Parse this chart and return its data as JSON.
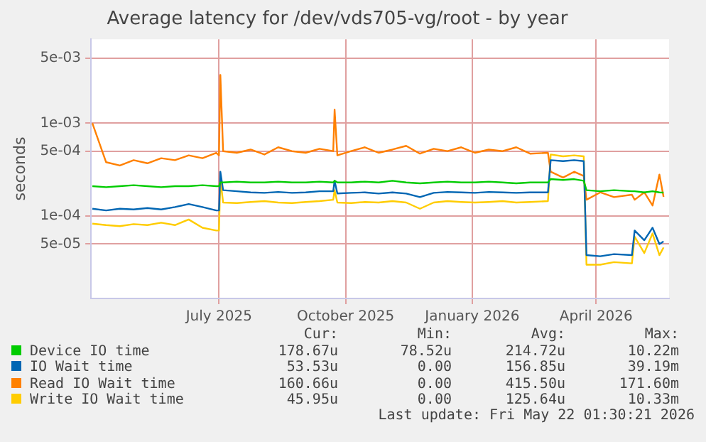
{
  "chart_data": {
    "type": "line",
    "title": "Average latency for /dev/vds705-vg/root - by year",
    "ylabel": "seconds",
    "log": true,
    "grid": true,
    "legend": "bottom",
    "marker": "none",
    "line_style": "solid",
    "xlim": [
      "2025-03-30",
      "2026-05-24"
    ],
    "xticks": [
      {
        "value": "2025-07-01",
        "label": "July 2025"
      },
      {
        "value": "2025-10-01",
        "label": "October 2025"
      },
      {
        "value": "2026-01-01",
        "label": "January 2026"
      },
      {
        "value": "2026-04-01",
        "label": "April 2026"
      }
    ],
    "ylim": [
      1.3e-05,
      0.008
    ],
    "yticks": [
      {
        "value": 5e-05,
        "label": "5e-05"
      },
      {
        "value": 0.0001,
        "label": "1e-04"
      },
      {
        "value": 0.0005,
        "label": "5e-04"
      },
      {
        "value": 0.001,
        "label": "1e-03"
      },
      {
        "value": 0.005,
        "label": "5e-03"
      }
    ],
    "x": [
      "2025-03-31",
      "2025-04-10",
      "2025-04-20",
      "2025-04-30",
      "2025-05-10",
      "2025-05-20",
      "2025-05-30",
      "2025-06-09",
      "2025-06-19",
      "2025-06-29",
      "2025-07-01",
      "2025-07-02",
      "2025-07-04",
      "2025-07-14",
      "2025-07-24",
      "2025-08-03",
      "2025-08-13",
      "2025-08-23",
      "2025-09-02",
      "2025-09-12",
      "2025-09-22",
      "2025-09-23",
      "2025-09-25",
      "2025-10-05",
      "2025-10-15",
      "2025-10-25",
      "2025-11-04",
      "2025-11-14",
      "2025-11-24",
      "2025-12-04",
      "2025-12-14",
      "2025-12-24",
      "2026-01-03",
      "2026-01-13",
      "2026-01-23",
      "2026-02-02",
      "2026-02-12",
      "2026-02-25",
      "2026-02-27",
      "2026-03-08",
      "2026-03-16",
      "2026-03-23",
      "2026-03-25",
      "2026-04-04",
      "2026-04-14",
      "2026-04-27",
      "2026-04-29",
      "2026-05-06",
      "2026-05-12",
      "2026-05-17",
      "2026-05-20"
    ],
    "series": [
      {
        "name": "Device IO time",
        "color": "#00cc00",
        "values": [
          0.00021,
          0.000205,
          0.00021,
          0.000215,
          0.00021,
          0.000205,
          0.00021,
          0.00021,
          0.000215,
          0.00021,
          0.00021,
          0.00023,
          0.00023,
          0.000235,
          0.00023,
          0.00023,
          0.000235,
          0.00023,
          0.00023,
          0.000235,
          0.00023,
          0.00024,
          0.00023,
          0.00023,
          0.000235,
          0.00023,
          0.00024,
          0.00023,
          0.000225,
          0.00023,
          0.000235,
          0.00023,
          0.00023,
          0.000235,
          0.00023,
          0.000225,
          0.00023,
          0.00023,
          0.00025,
          0.000245,
          0.00025,
          0.00024,
          0.00019,
          0.000185,
          0.00019,
          0.000185,
          0.000185,
          0.00018,
          0.000185,
          0.00018,
          0.000179
        ]
      },
      {
        "name": "IO Wait time",
        "color": "#0066b3",
        "values": [
          0.00012,
          0.000115,
          0.00012,
          0.000118,
          0.000122,
          0.000118,
          0.000125,
          0.000135,
          0.000125,
          0.000115,
          0.000115,
          0.0003,
          0.00019,
          0.000185,
          0.00018,
          0.000178,
          0.000182,
          0.000178,
          0.00018,
          0.000185,
          0.000185,
          0.00024,
          0.000175,
          0.000178,
          0.00018,
          0.000175,
          0.00018,
          0.000175,
          0.00016,
          0.000178,
          0.000182,
          0.00018,
          0.000178,
          0.000182,
          0.00018,
          0.000178,
          0.00018,
          0.00018,
          0.0004,
          0.00039,
          0.0004,
          0.00039,
          3.8e-05,
          3.7e-05,
          3.9e-05,
          3.8e-05,
          7e-05,
          5.5e-05,
          7.5e-05,
          5e-05,
          5.35e-05
        ]
      },
      {
        "name": "Read IO Wait time",
        "color": "#ff8000",
        "values": [
          0.001,
          0.00038,
          0.00035,
          0.0004,
          0.00037,
          0.00042,
          0.0004,
          0.00045,
          0.00042,
          0.00048,
          0.00045,
          0.0033,
          0.0005,
          0.00048,
          0.00052,
          0.00046,
          0.00055,
          0.0005,
          0.00048,
          0.00053,
          0.0005,
          0.0014,
          0.00045,
          0.0005,
          0.00055,
          0.00048,
          0.00052,
          0.00057,
          0.00047,
          0.00053,
          0.0005,
          0.00055,
          0.00048,
          0.00052,
          0.0005,
          0.00055,
          0.00047,
          0.00048,
          0.0003,
          0.00026,
          0.0003,
          0.00027,
          0.00015,
          0.00018,
          0.00016,
          0.00017,
          0.00015,
          0.00018,
          0.00013,
          0.00028,
          0.000161
        ]
      },
      {
        "name": "Write IO Wait time",
        "color": "#ffcc00",
        "values": [
          8.3e-05,
          8e-05,
          7.8e-05,
          8.2e-05,
          8e-05,
          8.5e-05,
          8e-05,
          9.2e-05,
          7.5e-05,
          7e-05,
          7e-05,
          0.00025,
          0.00014,
          0.000138,
          0.000142,
          0.000145,
          0.00014,
          0.000138,
          0.000142,
          0.000145,
          0.00015,
          0.00019,
          0.00014,
          0.000138,
          0.000142,
          0.00014,
          0.000145,
          0.00014,
          0.00012,
          0.00014,
          0.000145,
          0.000142,
          0.00014,
          0.000142,
          0.000145,
          0.00014,
          0.000142,
          0.000145,
          0.00046,
          0.00044,
          0.00045,
          0.00044,
          3e-05,
          3e-05,
          3.2e-05,
          3.1e-05,
          6e-05,
          4e-05,
          6.5e-05,
          3.8e-05,
          4.6e-05
        ]
      }
    ],
    "annotations": [
      "Cur:",
      "Min:",
      "Avg:",
      "Max:",
      "178.67u",
      "78.52u",
      "214.72u",
      "10.22m",
      "53.53u",
      "0.00",
      "156.85u",
      "39.19m",
      "160.66u",
      "0.00",
      "415.50u",
      "171.60m",
      "45.95u",
      "0.00",
      "125.64u",
      "10.33m",
      "Last update: Fri May 22 01:30:21 2026"
    ]
  }
}
